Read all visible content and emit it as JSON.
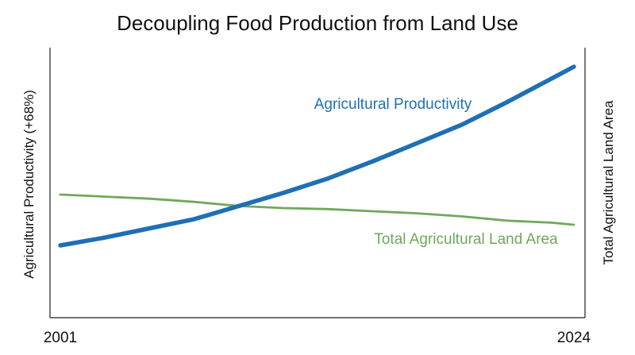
{
  "chart_data": {
    "type": "line",
    "title": "Decoupling Food Production from Land Use",
    "ylabel_left": "Agricultural Productivity (+68%)",
    "ylabel_right": "Total Agricultural Land Area",
    "x_tick_labels": [
      "2001",
      "2024"
    ],
    "x": [
      2001,
      2003,
      2005,
      2007,
      2009,
      2011,
      2013,
      2015,
      2017,
      2019,
      2021,
      2023,
      2024
    ],
    "xlim": [
      2001,
      2024
    ],
    "grid": false,
    "legend": "none; series labelled directly on the chart",
    "series": [
      {
        "name": "Agricultural Productivity",
        "axis": "left",
        "color": "#1f6fb4",
        "values": [
          100,
          103,
          106.5,
          110,
          115,
          120,
          125.5,
          132,
          139,
          146,
          154.5,
          163.5,
          168
        ]
      },
      {
        "name": "Total Agricultural Land Area",
        "axis": "right",
        "color": "#6fa85c",
        "values": [
          100,
          99.8,
          99.6,
          99.3,
          98.9,
          98.7,
          98.6,
          98.4,
          98.2,
          97.9,
          97.5,
          97.3,
          97.1
        ]
      }
    ]
  }
}
